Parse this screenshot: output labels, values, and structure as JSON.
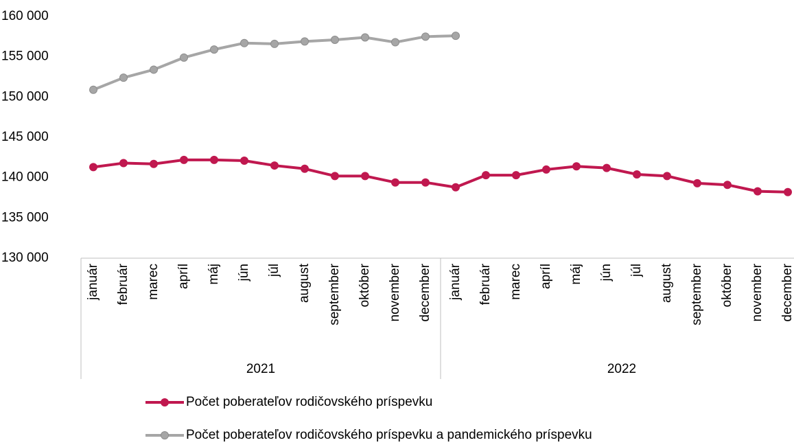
{
  "chart_data": {
    "type": "line",
    "categories": [
      "január",
      "február",
      "marec",
      "apríl",
      "máj",
      "jún",
      "júl",
      "august",
      "september",
      "október",
      "november",
      "december",
      "január",
      "február",
      "marec",
      "apríl",
      "máj",
      "jún",
      "júl",
      "august",
      "september",
      "október",
      "november",
      "december"
    ],
    "groups": [
      "2021",
      "2022"
    ],
    "series": [
      {
        "name": "Počet poberateľov rodičovského príspevku",
        "color": "#c0184f",
        "values": [
          141300,
          141800,
          141700,
          142200,
          142200,
          142100,
          141500,
          141100,
          140200,
          140200,
          139400,
          139400,
          138800,
          140300,
          140300,
          141000,
          141400,
          141200,
          140400,
          140200,
          139300,
          139100,
          138300,
          138200
        ]
      },
      {
        "name": "Počet poberateľov rodičovského príspevku a pandemického príspevku",
        "color": "#a6a6a6",
        "values": [
          150900,
          152400,
          153400,
          154900,
          155900,
          156700,
          156600,
          156900,
          157100,
          157400,
          156800,
          157500,
          157600,
          null,
          null,
          null,
          null,
          null,
          null,
          null,
          null,
          null,
          null,
          null
        ]
      }
    ],
    "ylim": [
      130000,
      160000
    ],
    "yticks": [
      {
        "value": 130000,
        "label": "130 000"
      },
      {
        "value": 135000,
        "label": "135 000"
      },
      {
        "value": 140000,
        "label": "140 000"
      },
      {
        "value": 145000,
        "label": "145 000"
      },
      {
        "value": 150000,
        "label": "150 000"
      },
      {
        "value": 155000,
        "label": "155 000"
      },
      {
        "value": 160000,
        "label": "160 000"
      }
    ],
    "grid": false
  }
}
